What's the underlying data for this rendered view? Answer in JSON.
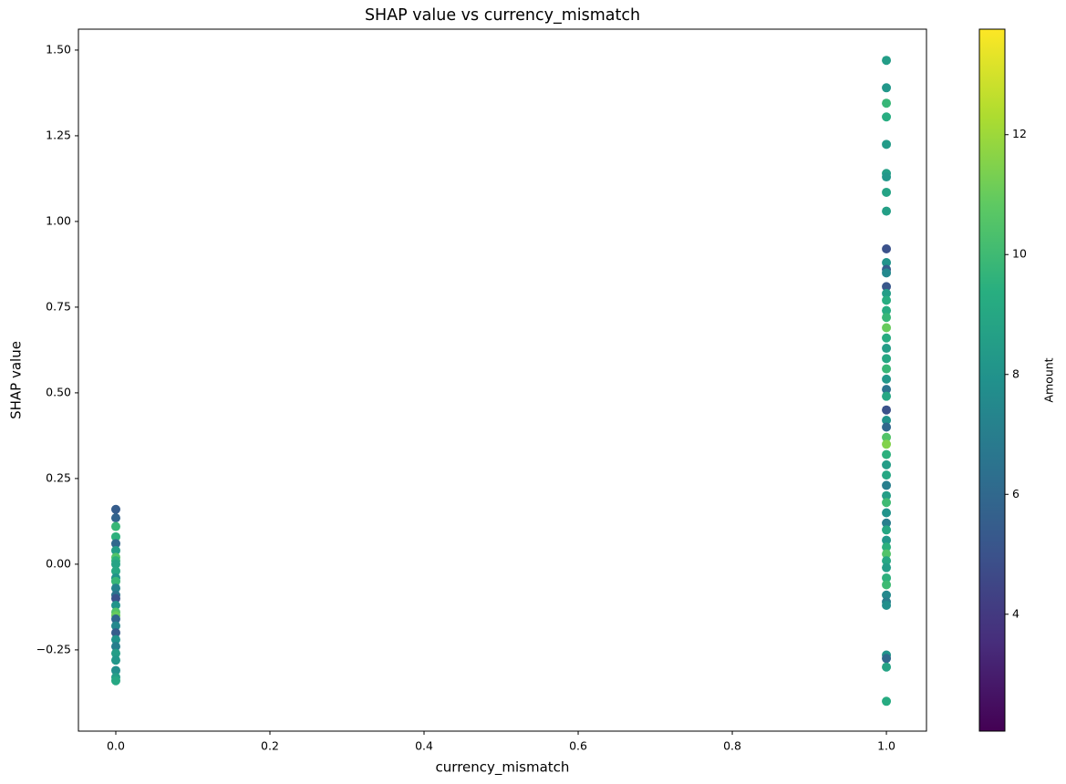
{
  "chart_data": {
    "type": "scatter",
    "title": "SHAP value vs currency_mismatch",
    "xlabel": "currency_mismatch",
    "ylabel": "SHAP value",
    "colorbar_label": "Amount",
    "colormap": "viridis",
    "x": [
      1,
      1,
      1,
      1,
      1,
      1,
      1,
      1,
      1,
      1,
      1,
      1,
      1,
      1,
      1,
      1,
      1,
      1,
      1,
      1,
      1,
      1,
      1,
      1,
      1,
      1,
      1,
      1,
      1,
      1,
      1,
      1,
      1,
      1,
      1,
      1,
      1,
      1,
      1,
      1,
      1,
      1,
      1,
      1,
      1,
      1,
      1,
      1,
      1,
      1,
      1,
      1,
      1,
      1,
      0,
      0,
      0,
      0,
      0,
      0,
      0,
      0,
      0,
      0,
      0,
      0,
      0,
      0,
      0,
      0,
      0,
      0,
      0,
      0,
      0,
      0,
      0,
      0,
      0,
      0,
      0,
      0
    ],
    "values": [
      1.47,
      1.39,
      1.345,
      1.305,
      1.225,
      1.14,
      1.13,
      1.085,
      1.03,
      0.92,
      0.88,
      0.86,
      0.85,
      0.81,
      0.79,
      0.77,
      0.74,
      0.72,
      0.69,
      0.66,
      0.63,
      0.6,
      0.57,
      0.54,
      0.51,
      0.49,
      0.45,
      0.42,
      0.4,
      0.37,
      0.35,
      0.32,
      0.29,
      0.26,
      0.23,
      0.2,
      0.18,
      0.15,
      0.12,
      0.1,
      0.07,
      0.05,
      0.03,
      0.01,
      -0.01,
      -0.04,
      -0.06,
      -0.09,
      -0.11,
      -0.12,
      -0.265,
      -0.275,
      -0.3,
      -0.4,
      0.16,
      0.135,
      0.11,
      0.08,
      0.06,
      0.04,
      0.02,
      0.01,
      0.0,
      -0.02,
      -0.04,
      -0.05,
      -0.07,
      -0.09,
      -0.1,
      -0.12,
      -0.14,
      -0.15,
      -0.16,
      -0.18,
      -0.2,
      -0.22,
      -0.24,
      -0.26,
      -0.28,
      -0.31,
      -0.33,
      -0.34
    ],
    "color_values": [
      8.5,
      8.2,
      9.8,
      9.3,
      8.4,
      8.6,
      8.2,
      8.8,
      8.6,
      5.0,
      8.0,
      5.5,
      7.5,
      5.2,
      8.5,
      9.3,
      9.2,
      9.8,
      11.0,
      9.2,
      8.5,
      9.0,
      9.8,
      8.2,
      6.5,
      9.0,
      5.0,
      8.0,
      6.0,
      10.5,
      11.5,
      9.5,
      8.5,
      9.0,
      7.0,
      8.5,
      10.0,
      8.0,
      7.0,
      9.0,
      8.2,
      9.5,
      10.5,
      9.0,
      8.5,
      9.5,
      10.0,
      7.5,
      7.0,
      7.8,
      8.0,
      6.0,
      8.8,
      9.2,
      5.5,
      5.8,
      9.8,
      9.5,
      6.0,
      8.5,
      10.5,
      9.5,
      8.8,
      9.0,
      8.0,
      9.8,
      7.2,
      6.5,
      5.0,
      8.0,
      10.5,
      11.0,
      6.0,
      7.5,
      5.5,
      8.0,
      7.0,
      8.5,
      8.2,
      7.8,
      8.5,
      9.0
    ],
    "xlim": [
      -0.0485,
      1.052
    ],
    "ylim": [
      -0.487,
      1.561
    ],
    "clim": [
      2.05,
      13.76
    ],
    "xticks": [
      {
        "value": 0,
        "label": "0.0"
      },
      {
        "value": 0.2,
        "label": "0.2"
      },
      {
        "value": 0.4,
        "label": "0.4"
      },
      {
        "value": 0.6,
        "label": "0.6"
      },
      {
        "value": 0.8,
        "label": "0.8"
      },
      {
        "value": 1,
        "label": "1.0"
      }
    ],
    "yticks": [
      {
        "value": -0.25,
        "label": "−0.25"
      },
      {
        "value": 0,
        "label": "0.00"
      },
      {
        "value": 0.25,
        "label": "0.25"
      },
      {
        "value": 0.5,
        "label": "0.50"
      },
      {
        "value": 0.75,
        "label": "0.75"
      },
      {
        "value": 1,
        "label": "1.00"
      },
      {
        "value": 1.25,
        "label": "1.25"
      },
      {
        "value": 1.5,
        "label": "1.50"
      }
    ],
    "cticks": [
      4,
      6,
      8,
      10,
      12
    ]
  }
}
